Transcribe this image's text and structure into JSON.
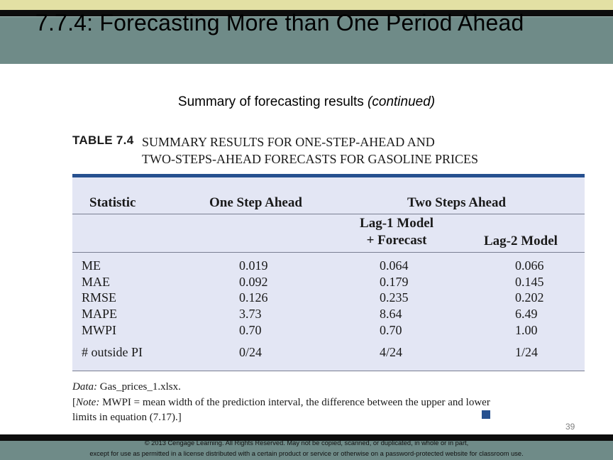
{
  "slide": {
    "title": "7.7.4: Forecasting More than One Period Ahead",
    "subtitle_main": "Summary of forecasting results ",
    "subtitle_paren": "(continued)",
    "page_number": "39"
  },
  "table": {
    "label": "TABLE 7.4",
    "title_line1": "SUMMARY RESULTS FOR ONE-STEP-AHEAD AND",
    "title_line2": "TWO-STEPS-AHEAD FORECASTS FOR GASOLINE PRICES",
    "headers": {
      "statistic": "Statistic",
      "one_step": "One Step Ahead",
      "two_steps": "Two Steps Ahead",
      "lag1_line1": "Lag-1 Model",
      "lag1_line2": "+ Forecast",
      "lag2": "Lag-2 Model"
    },
    "rows": [
      {
        "stat": "ME",
        "one": "0.019",
        "lag1": "0.064",
        "lag2": "0.066"
      },
      {
        "stat": "MAE",
        "one": "0.092",
        "lag1": "0.179",
        "lag2": "0.145"
      },
      {
        "stat": "RMSE",
        "one": "0.126",
        "lag1": "0.235",
        "lag2": "0.202"
      },
      {
        "stat": "MAPE",
        "one": "3.73",
        "lag1": "8.64",
        "lag2": "6.49"
      },
      {
        "stat": "MWPI",
        "one": "0.70",
        "lag1": "0.70",
        "lag2": "1.00"
      }
    ],
    "outside_row": {
      "stat": "# outside PI",
      "one": "0/24",
      "lag1": "4/24",
      "lag2": "1/24"
    },
    "data_label": "Data:",
    "data_file": " Gas_prices_1.xlsx.",
    "note_label": "Note:",
    "note_text": " MWPI = mean width of the prediction interval, the difference between the upper and lower limits in equation (7.17).]",
    "note_open": "["
  },
  "footer": {
    "line1": "© 2013 Cengage Learning. All Rights Reserved. May not be copied, scanned, or duplicated, in whole or in part,",
    "line2": "except for use as permitted in a license distributed with a certain product or service or otherwise on a password-protected website for classroom use."
  },
  "colors": {
    "title_band": "#6f8b88",
    "top_stripe": "#e3e0a4",
    "table_fill": "#e3e6f4",
    "table_accent": "#26508f"
  }
}
